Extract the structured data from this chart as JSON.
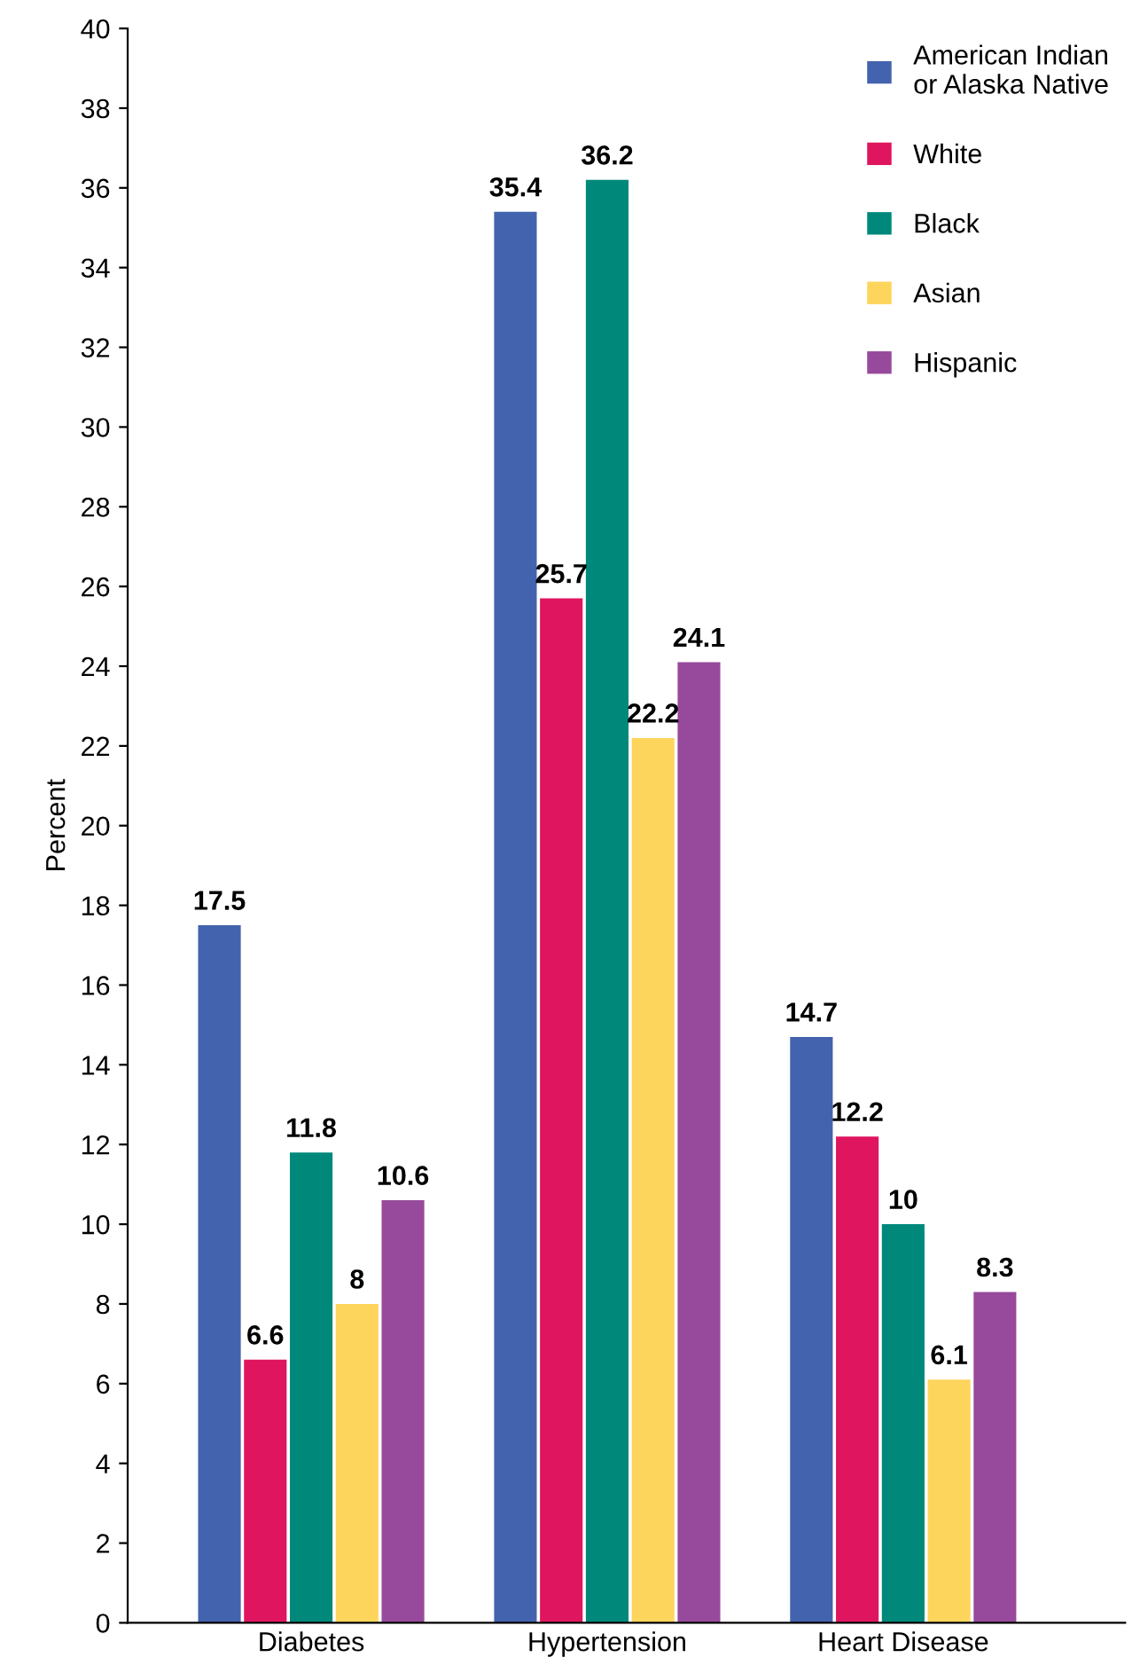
{
  "chart_data": {
    "type": "bar",
    "ylabel": "Percent",
    "categories": [
      "Diabetes",
      "Hypertension",
      "Heart Disease"
    ],
    "series": [
      {
        "name": "American Indian\nor Alaska Native",
        "color": "#4363ae",
        "values": [
          17.5,
          35.4,
          14.7
        ]
      },
      {
        "name": "White",
        "color": "#e0155f",
        "values": [
          6.6,
          25.7,
          12.2
        ]
      },
      {
        "name": "Black",
        "color": "#00897b",
        "values": [
          11.8,
          36.2,
          10
        ]
      },
      {
        "name": "Asian",
        "color": "#fdd55c",
        "values": [
          8,
          22.2,
          6.1
        ]
      },
      {
        "name": "Hispanic",
        "color": "#974a9b",
        "values": [
          10.6,
          24.1,
          8.3
        ]
      }
    ],
    "ylim": [
      0,
      40
    ],
    "yticks": [
      0,
      2,
      4,
      6,
      8,
      10,
      12,
      14,
      16,
      18,
      20,
      22,
      24,
      26,
      28,
      30,
      32,
      34,
      36,
      38,
      40
    ],
    "data_labels": true,
    "legend": "top right",
    "grid": false
  }
}
